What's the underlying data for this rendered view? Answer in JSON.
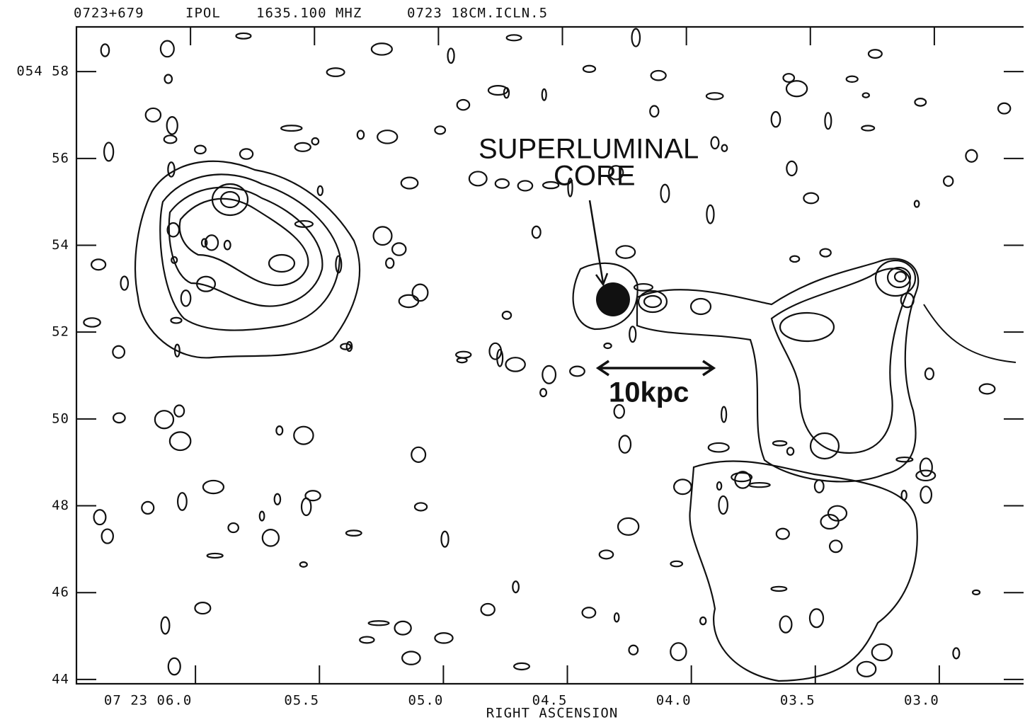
{
  "chart_data": {
    "type": "contour",
    "header": [
      "0723+679",
      "IPOL",
      "1635.100 MHZ",
      "0723 18CM.ICLN.5"
    ],
    "xlabel": "RIGHT ASCENSION",
    "annotations": [
      "SUPERLUMINAL",
      "CORE",
      "10kpc"
    ],
    "xlim": [
      6.48,
      2.66
    ],
    "xticks": [
      {
        "value": 6.0,
        "label": "07 23 06.0"
      },
      {
        "value": 5.5,
        "label": "05.5"
      },
      {
        "value": 5.0,
        "label": "05.0"
      },
      {
        "value": 4.5,
        "label": "04.5"
      },
      {
        "value": 4.0,
        "label": "04.0"
      },
      {
        "value": 3.5,
        "label": "03.5"
      },
      {
        "value": 3.0,
        "label": "03.0"
      }
    ],
    "ylim": [
      43.9,
      59.03
    ],
    "yticks": [
      {
        "value": 58,
        "label": "054 58"
      },
      56,
      54,
      52,
      50,
      48,
      46,
      44
    ]
  }
}
